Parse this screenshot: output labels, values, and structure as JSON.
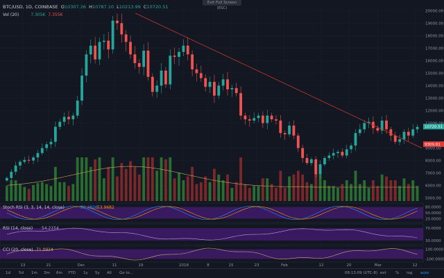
{
  "header": {
    "exit_fullscreen": "Exit Full Screen (ESC)",
    "symbol": "BTC/USD, 1D, COINBASE",
    "open_label": "O",
    "open": "10307.26",
    "high_label": "H",
    "high": "10787.10",
    "low_label": "L",
    "low": "10213.99",
    "close_label": "C",
    "close": "10720.51",
    "vol_label": "Vol (20)",
    "vol_value1": "7.305K",
    "vol_value2": "7.355K"
  },
  "indicators": {
    "stoch": {
      "label": "Stoch RSI (3, 3, 14, 14, close)",
      "k": "56.3826",
      "d": "53.9682"
    },
    "rsi": {
      "label": "RSI (14, close)",
      "value": "54.2154"
    },
    "cci": {
      "label": "CCI (20, close)",
      "value": "71.0924"
    }
  },
  "price_axis": {
    "labels": [
      "20000.00",
      "19000.00",
      "18000.00",
      "17000.00",
      "16000.00",
      "15000.00",
      "14000.00",
      "13000.00",
      "12000.00",
      "11000.00",
      "9000.00",
      "8000.00",
      "7000.00",
      "6000.00",
      "5000.00"
    ],
    "last_price": "10720.51",
    "marker_price": "9309.61"
  },
  "stoch_axis": {
    "labels": [
      "80.0000",
      "50.0000",
      "20.0000"
    ]
  },
  "rsi_axis": {
    "labels": [
      "70.0000",
      "30.0000"
    ]
  },
  "cci_axis": {
    "labels": [
      "100.0000",
      "-100.0000"
    ]
  },
  "time_axis": {
    "labels": [
      "13",
      "21",
      "Dec",
      "11",
      "19",
      "2018",
      "8",
      "15",
      "23",
      "Feb",
      "12",
      "20",
      "Mar",
      "12"
    ]
  },
  "bottom_bar": {
    "ranges": [
      "1d",
      "5d",
      "1m",
      "3m",
      "6m",
      "YTD",
      "1y",
      "5y",
      "All"
    ],
    "goto": "Go to...",
    "clock": "08:13:09 (UTC-8)",
    "ext": "ext",
    "pct": "%",
    "log": "log",
    "auto": "auto"
  },
  "colors": {
    "up": "#26a69a",
    "down": "#ef5350",
    "trend": "#c0392b",
    "bg": "#131722",
    "band": "#4a1d7a"
  },
  "chart_data": {
    "type": "candlestick",
    "closes": [
      6600,
      7100,
      7600,
      7900,
      8050,
      8000,
      8250,
      8600,
      9000,
      9300,
      9500,
      10700,
      11100,
      11500,
      11300,
      11600,
      12800,
      14800,
      16500,
      17200,
      16100,
      17500,
      17600,
      16900,
      19200,
      19000,
      18100,
      17500,
      16500,
      15800,
      15500,
      16800,
      14700,
      13500,
      14000,
      15200,
      14100,
      16400,
      16300,
      16700,
      17200,
      16500,
      15300,
      15000,
      14600,
      13900,
      14300,
      13200,
      14000,
      14500,
      13700,
      13800,
      13400,
      11600,
      11300,
      11200,
      11400,
      11600,
      11000,
      11600,
      11300,
      11200,
      10200,
      10100,
      10800,
      10000,
      9000,
      8200,
      7800,
      8100,
      6900,
      7700,
      8200,
      8400,
      8600,
      8700,
      8400,
      8900,
      9200,
      10200,
      10500,
      11000,
      11100,
      10600,
      10400,
      11200,
      10500,
      10000,
      9500,
      9700,
      10300,
      10000,
      10500,
      10700
    ]
  }
}
